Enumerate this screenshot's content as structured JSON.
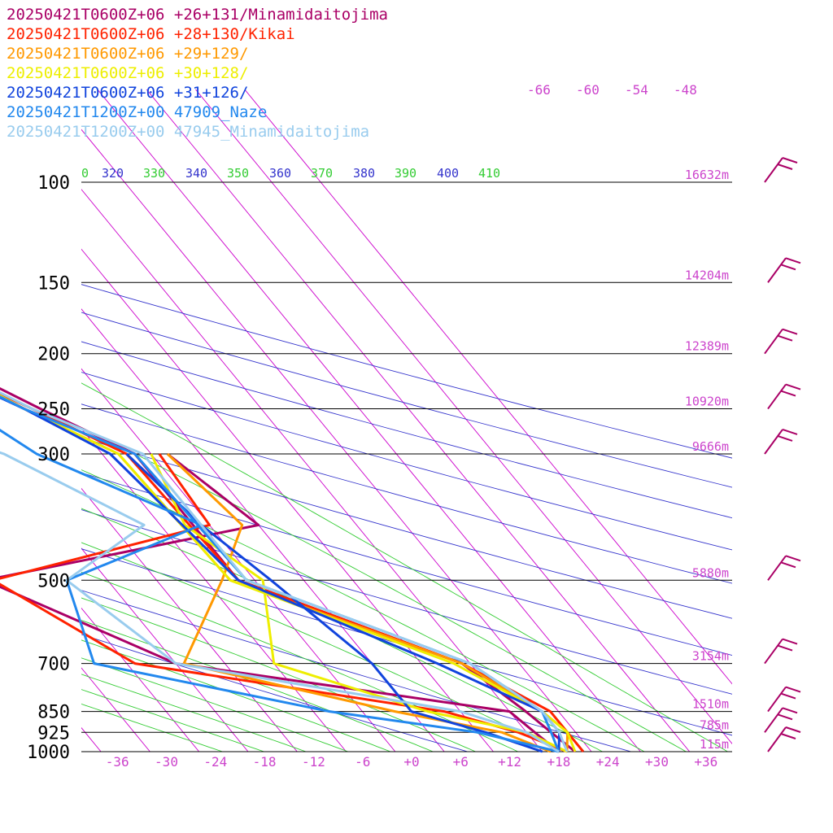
{
  "chart_data": {
    "type": "line",
    "title": "",
    "xlabel": "",
    "ylabel": "",
    "pressure_levels": [
      100,
      150,
      200,
      250,
      300,
      500,
      700,
      850,
      925,
      1000
    ],
    "pressure_labels": [
      "100",
      "150",
      "200",
      "250",
      "300",
      "500",
      "700",
      "850",
      "925",
      "1000"
    ],
    "height_labels": [
      "16632m",
      "14204m",
      "12389m",
      "10920m",
      "9666m",
      "5880m",
      "3154m",
      "1510m",
      "785m",
      "115m"
    ],
    "temperature_ticks": [
      -36,
      -30,
      -24,
      -18,
      -12,
      -6,
      0,
      6,
      12,
      18,
      24,
      30,
      36
    ],
    "temperature_tick_labels": [
      "-36",
      "-30",
      "-24",
      "-18",
      "-12",
      "-6",
      "+0",
      "+6",
      "+12",
      "+18",
      "+24",
      "+30",
      "+36"
    ],
    "upper_temperature_labels": [
      "-66",
      "-60",
      "-54",
      "-48"
    ],
    "theta_labels": [
      {
        "text": "0",
        "color": "#33cc33"
      },
      {
        "text": "320",
        "color": "#3333cc"
      },
      {
        "text": "330",
        "color": "#33cc33"
      },
      {
        "text": "340",
        "color": "#3333cc"
      },
      {
        "text": "350",
        "color": "#33cc33"
      },
      {
        "text": "360",
        "color": "#3333cc"
      },
      {
        "text": "370",
        "color": "#33cc33"
      },
      {
        "text": "380",
        "color": "#3333cc"
      },
      {
        "text": "390",
        "color": "#33cc33"
      },
      {
        "text": "400",
        "color": "#3333cc"
      },
      {
        "text": "410",
        "color": "#33cc33"
      }
    ],
    "colors": {
      "isotherm": "#cc00cc",
      "dry_adiabat": "#3333cc",
      "moist_adiabat": "#33cc33",
      "isobar": "#000000",
      "label_pink": "#cc44cc",
      "barb": "#aa0066"
    },
    "series": [
      {
        "name": "20250421T0600Z+06 +26+131/Minamidaitojima",
        "color": "#aa0066",
        "temperature": [
          [
            1000,
            20
          ],
          [
            925,
            19
          ],
          [
            850,
            18
          ],
          [
            700,
            15
          ],
          [
            500,
            -4
          ],
          [
            300,
            -4
          ],
          [
            250,
            -11
          ],
          [
            200,
            -19
          ],
          [
            150,
            -19
          ],
          [
            100,
            -20
          ]
        ],
        "dewpoint": [
          [
            1000,
            18
          ],
          [
            925,
            17
          ],
          [
            850,
            16
          ],
          [
            700,
            -20
          ],
          [
            500,
            -35
          ],
          [
            400,
            4
          ],
          [
            300,
            0
          ]
        ]
      },
      {
        "name": "20250421T0600Z+06 +28+130/Kikai",
        "color": "#ff2200",
        "temperature": [
          [
            1000,
            21
          ],
          [
            925,
            21
          ],
          [
            850,
            21
          ],
          [
            700,
            15
          ],
          [
            500,
            -4
          ],
          [
            300,
            -5
          ],
          [
            250,
            -12
          ],
          [
            200,
            -21
          ],
          [
            150,
            -20
          ],
          [
            100,
            -21
          ]
        ],
        "dewpoint": [
          [
            1000,
            19
          ],
          [
            925,
            15
          ],
          [
            850,
            8
          ],
          [
            700,
            -25
          ],
          [
            500,
            -34
          ],
          [
            400,
            -2
          ],
          [
            300,
            -1
          ]
        ]
      },
      {
        "name": "20250421T0600Z+06 +29+129/",
        "color": "#ff9900",
        "temperature": [
          [
            1000,
            19
          ],
          [
            925,
            21
          ],
          [
            850,
            20
          ],
          [
            700,
            15
          ],
          [
            500,
            -5
          ],
          [
            300,
            -6
          ],
          [
            250,
            -13
          ],
          [
            200,
            -20
          ],
          [
            150,
            -19
          ],
          [
            100,
            -20
          ]
        ],
        "dewpoint": [
          [
            1000,
            17
          ],
          [
            925,
            13
          ],
          [
            850,
            2
          ],
          [
            700,
            -19
          ],
          [
            500,
            -6
          ],
          [
            400,
            2
          ],
          [
            300,
            0
          ]
        ]
      },
      {
        "name": "20250421T0600Z+06 +30+128/",
        "color": "#eeee00",
        "temperature": [
          [
            1000,
            20
          ],
          [
            925,
            21
          ],
          [
            850,
            20
          ],
          [
            700,
            14
          ],
          [
            500,
            -5
          ],
          [
            300,
            -6
          ],
          [
            250,
            -13
          ],
          [
            200,
            -20
          ],
          [
            150,
            -19
          ],
          [
            100,
            -19
          ]
        ],
        "dewpoint": [
          [
            1000,
            19
          ],
          [
            925,
            16
          ],
          [
            850,
            6
          ],
          [
            700,
            -8
          ],
          [
            500,
            -1
          ],
          [
            400,
            -5
          ],
          [
            300,
            -2
          ]
        ]
      },
      {
        "name": "20250421T0600Z+06 +31+126/",
        "color": "#1144dd",
        "temperature": [
          [
            1000,
            18
          ],
          [
            925,
            20
          ],
          [
            850,
            20
          ],
          [
            700,
            12
          ],
          [
            500,
            -4
          ],
          [
            300,
            -7
          ],
          [
            250,
            -13
          ],
          [
            200,
            -22
          ],
          [
            150,
            -17
          ],
          [
            100,
            -19
          ]
        ],
        "dewpoint": [
          [
            1000,
            16
          ],
          [
            925,
            11
          ],
          [
            850,
            4
          ],
          [
            700,
            4
          ],
          [
            500,
            0
          ],
          [
            400,
            -3
          ],
          [
            300,
            -5
          ]
        ]
      },
      {
        "name": "20250421T1200Z+00 47909_Naze",
        "color": "#2288ee",
        "temperature": [
          [
            1000,
            18
          ],
          [
            925,
            19
          ],
          [
            850,
            20
          ],
          [
            700,
            16
          ],
          [
            500,
            -3
          ],
          [
            300,
            -4
          ],
          [
            250,
            -13
          ],
          [
            200,
            -21
          ],
          [
            150,
            -21
          ],
          [
            100,
            -22
          ]
        ],
        "dewpoint": [
          [
            1000,
            18
          ],
          [
            925,
            10
          ],
          [
            850,
            -6
          ],
          [
            700,
            -30
          ],
          [
            500,
            -25
          ],
          [
            400,
            -3
          ],
          [
            300,
            -16
          ],
          [
            250,
            -20
          ],
          [
            200,
            -40
          ],
          [
            150,
            -63
          ],
          [
            100,
            -55
          ]
        ]
      },
      {
        "name": "20250421T1200Z+00 47945_Minamidaitojima",
        "color": "#99ccee",
        "temperature": [
          [
            1000,
            19
          ],
          [
            925,
            20
          ],
          [
            850,
            20
          ],
          [
            700,
            16
          ],
          [
            500,
            -3
          ],
          [
            300,
            -3
          ],
          [
            250,
            -12
          ],
          [
            200,
            -20
          ],
          [
            150,
            -19
          ],
          [
            100,
            -22
          ]
        ],
        "dewpoint": [
          [
            1000,
            18
          ],
          [
            925,
            16
          ],
          [
            850,
            10
          ],
          [
            700,
            -20
          ],
          [
            500,
            -25
          ],
          [
            400,
            -10
          ],
          [
            300,
            -20
          ],
          [
            250,
            -32
          ],
          [
            200,
            -40
          ],
          [
            150,
            -55
          ],
          [
            100,
            -50
          ]
        ]
      }
    ],
    "wind_barbs": [
      100,
      150,
      200,
      250,
      300,
      500,
      700,
      850,
      925,
      1000
    ],
    "legend_position": "top-left",
    "grid": true
  }
}
